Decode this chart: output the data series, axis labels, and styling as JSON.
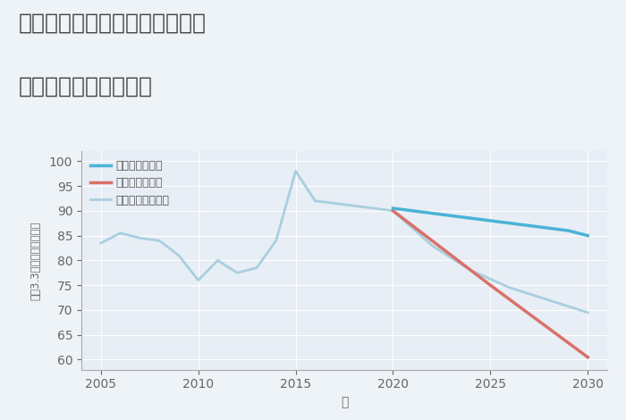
{
  "title_line1": "兵庫県たつの市揖保川町黍田の",
  "title_line2": "中古戸建ての価格推移",
  "xlabel": "年",
  "ylabel": "坪（3.3㎡）単価（万円）",
  "bg_color": "#eef3f8",
  "plot_bg_color": "#e8eef5",
  "grid_color": "#ffffff",
  "ylim": [
    58,
    102
  ],
  "yticks": [
    60,
    65,
    70,
    75,
    80,
    85,
    90,
    95,
    100
  ],
  "xticks": [
    2005,
    2010,
    2015,
    2020,
    2025,
    2030
  ],
  "good_scenario": {
    "label": "グッドシナリオ",
    "color": "#4ab3d8",
    "x": [
      2020,
      2021,
      2022,
      2023,
      2024,
      2025,
      2026,
      2027,
      2028,
      2029,
      2030
    ],
    "y": [
      90.5,
      90.0,
      89.5,
      89.0,
      88.5,
      88.0,
      87.5,
      87.0,
      86.5,
      86.0,
      85.0
    ]
  },
  "bad_scenario": {
    "label": "バッドシナリオ",
    "color": "#d9726a",
    "x": [
      2020,
      2025,
      2030
    ],
    "y": [
      90.0,
      75.0,
      60.5
    ]
  },
  "normal_scenario": {
    "label": "ノーマルシナリオ",
    "color": "#a8cfe0",
    "x": [
      2005,
      2006,
      2007,
      2008,
      2009,
      2010,
      2011,
      2012,
      2013,
      2014,
      2015,
      2016,
      2017,
      2018,
      2019,
      2020,
      2022,
      2024,
      2026,
      2028,
      2030
    ],
    "y": [
      83.5,
      85.5,
      84.5,
      84.0,
      81.0,
      76.0,
      80.0,
      77.5,
      78.5,
      84.0,
      98.0,
      92.0,
      91.5,
      91.0,
      90.5,
      90.0,
      83.0,
      78.0,
      74.5,
      72.0,
      69.5
    ]
  },
  "title_fontsize": 18,
  "tick_fontsize": 10,
  "label_fontsize": 10,
  "legend_fontsize": 9
}
